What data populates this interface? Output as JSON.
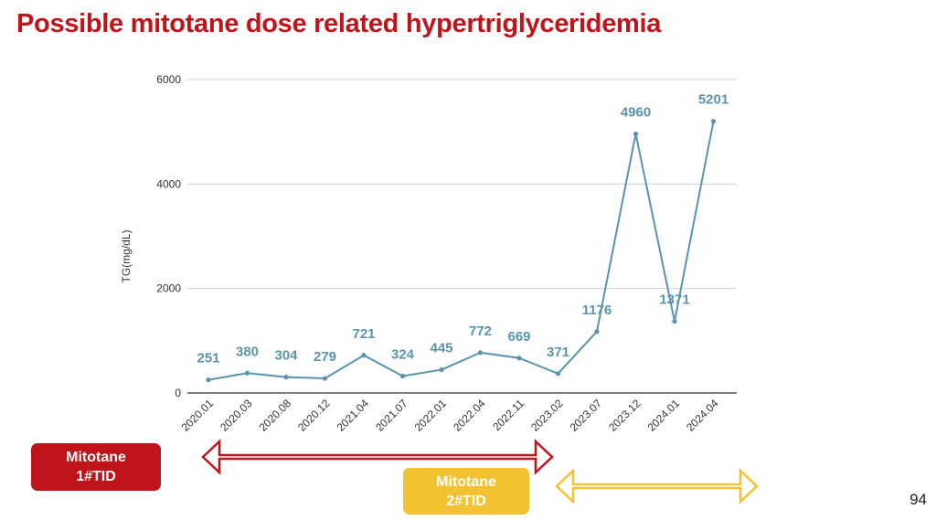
{
  "title": "Possible mitotane dose related hypertriglyceridemia",
  "page_number": "94",
  "chart_data": {
    "type": "line",
    "categories": [
      "2020.01",
      "2020.03",
      "2020.08",
      "2020.12",
      "2021.04",
      "2021.07",
      "2022.01",
      "2022.04",
      "2022.11",
      "2023.02",
      "2023.07",
      "2023.12",
      "2024.01",
      "2024.04"
    ],
    "values": [
      251,
      380,
      304,
      279,
      721,
      324,
      445,
      772,
      669,
      371,
      1176,
      4960,
      1371,
      5201
    ],
    "title": "",
    "xlabel": "",
    "ylabel": "TG(mg/dL)",
    "ylim": [
      0,
      6000
    ],
    "yticks": [
      0,
      2000,
      4000,
      6000
    ],
    "grid": true,
    "data_labels": true,
    "line_color": "#5b93ad",
    "label_color": "#5b93ad"
  },
  "annotations": {
    "dose_1": {
      "label": "Mitotane\n1#TID",
      "box_color": "#c0141b",
      "arrow_color": "#c0141b",
      "span_categories": [
        "2020.01",
        "2023.02"
      ]
    },
    "dose_2": {
      "label": "Mitotane\n2#TID",
      "box_color": "#f2c232",
      "arrow_color": "#f2c232",
      "span_categories": [
        "2023.02",
        "2024.04"
      ]
    }
  }
}
